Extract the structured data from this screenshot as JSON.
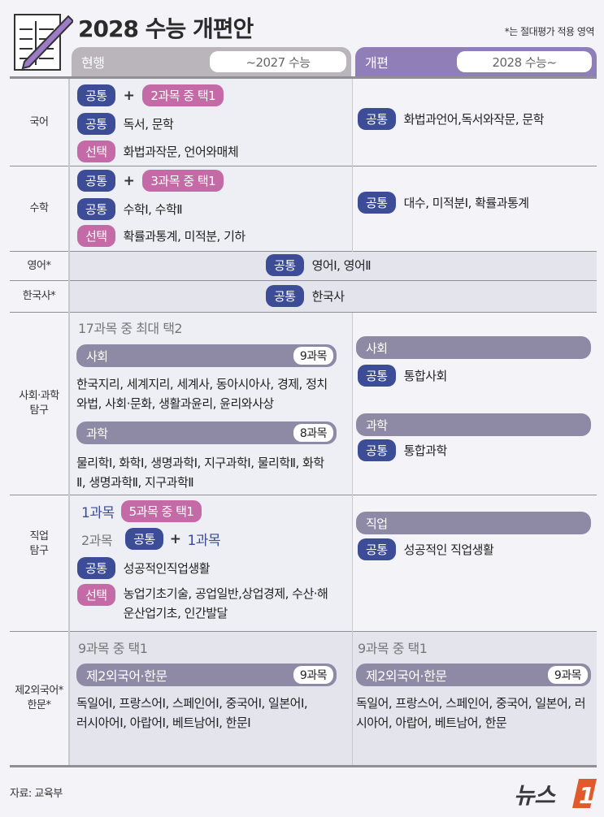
{
  "header": {
    "title": "2028 수능 개편안",
    "note": "*는 절대평가 적용 영역",
    "current_label": "현행",
    "current_range": "~2027 수능",
    "new_label": "개편",
    "new_range": "2028 수능~"
  },
  "colors": {
    "common": "#3c4c97",
    "select": "#c46aa6",
    "bar": "#8e89a5",
    "current_header": "#b9b5bb",
    "new_header": "#8f7eb8"
  },
  "tags": {
    "common": "공통",
    "select": "선택",
    "plus": "+"
  },
  "korean": {
    "label": "국어",
    "cur_choice": "2과목 중 택1",
    "cur_common": "독서, 문학",
    "cur_select": "화법과작문, 언어와매체",
    "new_common": "화법과언어,독서와작문, 문학"
  },
  "math": {
    "label": "수학",
    "cur_choice": "3과목 중 택1",
    "cur_common": "수학Ⅰ, 수학Ⅱ",
    "cur_select": "확률과통계, 미적분, 기하",
    "new_common": "대수, 미적분Ⅰ, 확률과통계"
  },
  "english": {
    "label": "영어*",
    "common": "영어Ⅰ, 영어Ⅱ"
  },
  "history": {
    "label": "한국사*",
    "common": "한국사"
  },
  "inquiry": {
    "label": "사회·과학 탐구",
    "cur_choice": "17과목 중 최대 택2",
    "social": "사회",
    "social_count": "9과목",
    "social_subjects": "한국지리, 세계지리, 세계사, 동아시아사, 경제, 정치와법, 사회·문화, 생활과윤리, 윤리와사상",
    "science": "과학",
    "science_count": "8과목",
    "science_subjects": "물리학Ⅰ, 화학Ⅰ, 생명과학Ⅰ, 지구과학Ⅰ, 물리학Ⅱ, 화학Ⅱ, 생명과학Ⅱ, 지구과학Ⅱ",
    "new_social_common": "통합사회",
    "new_science_common": "통합과학"
  },
  "vocational": {
    "label": "직업 탐구",
    "one": "1과목",
    "one_choice": "5과목 중 택1",
    "two": "2과목",
    "two_plus": "1과목",
    "cur_common": "성공적인직업생활",
    "cur_select": "농업기초기술, 공업일반,상업경제, 수산·해운산업기초, 인간발달",
    "new_bar": "직업",
    "new_common": "성공적인 직업생활"
  },
  "foreign": {
    "label": "제2외국어* 한문*",
    "cur_choice": "9과목 중 택1",
    "bar": "제2외국어·한문",
    "count": "9과목",
    "cur_subjects": "독일어Ⅰ, 프랑스어Ⅰ, 스페인어Ⅰ, 중국어Ⅰ, 일본어Ⅰ, 러시아어Ⅰ, 아랍어Ⅰ, 베트남어Ⅰ, 한문Ⅰ",
    "new_choice": "9과목 중 택1",
    "new_subjects": "독일어, 프랑스어, 스페인어, 중국어, 일본어, 러시아어, 아랍어, 베트남어, 한문"
  },
  "footer": {
    "source": "자료: 교육부",
    "logo_text": "뉴스1"
  }
}
